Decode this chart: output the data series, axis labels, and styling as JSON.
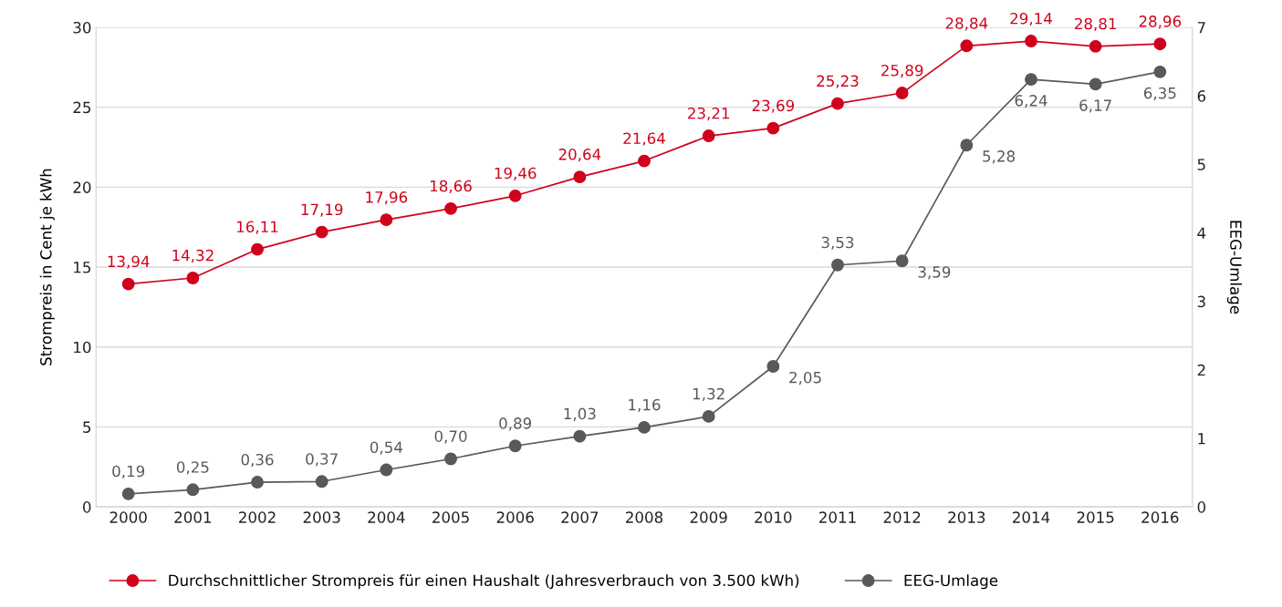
{
  "chart_data": {
    "type": "line",
    "categories": [
      "2000",
      "2001",
      "2002",
      "2003",
      "2004",
      "2005",
      "2006",
      "2007",
      "2008",
      "2009",
      "2010",
      "2011",
      "2012",
      "2013",
      "2014",
      "2015",
      "2016"
    ],
    "series": [
      {
        "name": "Durchschnittlicher Strompreis für einen Haushalt (Jahresverbrauch von 3.500 kWh)",
        "color": "#d0021b",
        "values": [
          13.94,
          14.32,
          16.11,
          17.19,
          17.96,
          18.66,
          19.46,
          20.64,
          21.64,
          23.21,
          23.69,
          25.23,
          25.89,
          28.84,
          29.14,
          28.81,
          28.96
        ],
        "value_labels": [
          "13,94",
          "14,32",
          "16,11",
          "17,19",
          "17,96",
          "18,66",
          "19,46",
          "20,64",
          "21,64",
          "23,21",
          "23,69",
          "25,23",
          "25,89",
          "28,84",
          "29,14",
          "28,81",
          "28,96"
        ]
      },
      {
        "name": "EEG-Umlage",
        "color": "#595959",
        "axis": "y2",
        "values": [
          0.19,
          0.25,
          0.36,
          0.37,
          0.54,
          0.7,
          0.89,
          1.03,
          1.16,
          1.32,
          2.05,
          3.53,
          3.59,
          5.28,
          6.24,
          6.17,
          6.35
        ],
        "value_labels": [
          "0,19",
          "0,25",
          "0,36",
          "0,37",
          "0,54",
          "0,70",
          "0,89",
          "1,03",
          "1,16",
          "1,32",
          "2,05",
          "3,53",
          "3,59",
          "5,28",
          "6,24",
          "6,17",
          "6,35"
        ]
      }
    ],
    "ylabel": "Strompreis in Cent je kWh",
    "y2label": "EEG-Umlage",
    "ylim": [
      0,
      30
    ],
    "yticks": [
      0,
      5,
      10,
      15,
      20,
      25,
      30
    ],
    "y2lim": [
      0,
      7
    ],
    "y2ticks": [
      0,
      1,
      2,
      3,
      4,
      5,
      6,
      7
    ],
    "grid": "y",
    "legend": "bottom",
    "marker": "circle",
    "line_style": "solid"
  }
}
